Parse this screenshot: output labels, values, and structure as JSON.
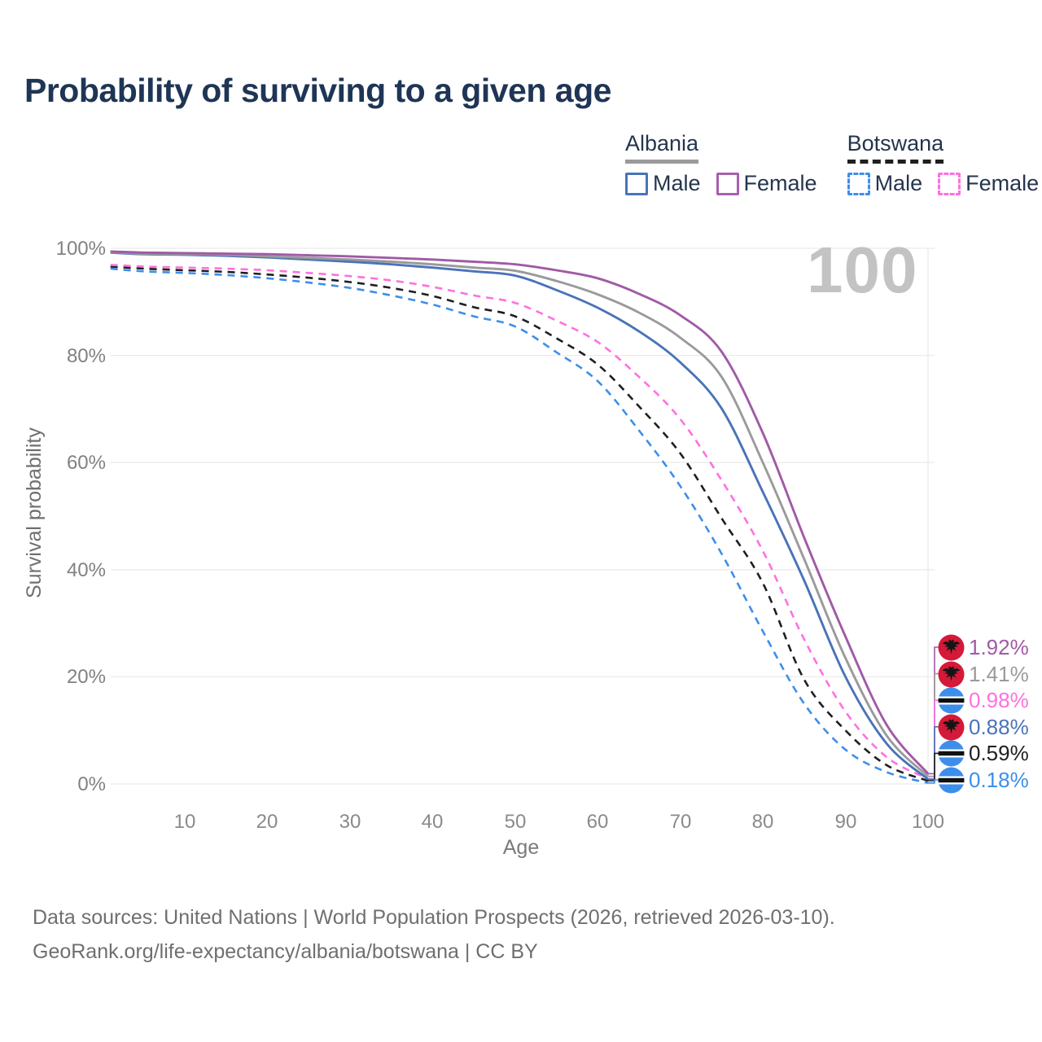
{
  "title": "Probability of surviving to a given age",
  "legend": {
    "groups": [
      {
        "country": "Albania",
        "line_style": "solid",
        "underline_color": "#9a9a9a",
        "items": [
          {
            "label": "Male",
            "color": "#4a73b8"
          },
          {
            "label": "Female",
            "color": "#a860ae"
          }
        ]
      },
      {
        "country": "Botswana",
        "line_style": "dashed",
        "underline_color": "#1f1f1f",
        "items": [
          {
            "label": "Male",
            "color": "#3d8eeb"
          },
          {
            "label": "Female",
            "color": "#ff70df"
          }
        ]
      }
    ]
  },
  "chart_data": {
    "type": "line",
    "title": "Probability of surviving to a given age",
    "xlabel": "Age",
    "ylabel": "Survival probability",
    "xlim": [
      1,
      100
    ],
    "ylim": [
      0,
      100
    ],
    "x_ticks": [
      10,
      20,
      30,
      40,
      50,
      60,
      70,
      80,
      90,
      100
    ],
    "y_ticks": [
      {
        "label": "0%",
        "value": 0
      },
      {
        "label": "20%",
        "value": 20
      },
      {
        "label": "40%",
        "value": 40
      },
      {
        "label": "60%",
        "value": 60
      },
      {
        "label": "80%",
        "value": 80
      },
      {
        "label": "100%",
        "value": 100
      }
    ],
    "grid": "horizontal",
    "legend_position": "top-right",
    "watermark": "100",
    "current_age_marker": 100,
    "ages": [
      1,
      5,
      10,
      15,
      20,
      25,
      30,
      35,
      40,
      45,
      50,
      55,
      60,
      65,
      70,
      75,
      80,
      85,
      90,
      95,
      100
    ],
    "series": [
      {
        "name": "Albania Female",
        "country": "Albania",
        "sex": "Female",
        "flag": "albania",
        "color": "#a05aa6",
        "dash": "solid",
        "end_label": "1.92%",
        "values": [
          99.4,
          99.2,
          99.1,
          99.0,
          98.9,
          98.7,
          98.5,
          98.2,
          97.9,
          97.5,
          97.0,
          95.9,
          94.4,
          91.5,
          87.5,
          80.7,
          65.5,
          46.0,
          27.5,
          11.0,
          1.92
        ]
      },
      {
        "name": "Albania Both sexes",
        "country": "Albania",
        "sex": "Both",
        "flag": "albania",
        "color": "#9a9a9a",
        "dash": "solid",
        "end_label": "1.41%",
        "values": [
          99.3,
          99.0,
          98.9,
          98.8,
          98.5,
          98.2,
          97.9,
          97.5,
          97.0,
          96.4,
          95.8,
          93.9,
          91.4,
          88.0,
          83.3,
          76.0,
          60.0,
          42.0,
          23.5,
          9.0,
          1.41
        ]
      },
      {
        "name": "Albania Male",
        "country": "Albania",
        "sex": "Male",
        "flag": "albania",
        "color": "#4a73b8",
        "dash": "solid",
        "end_label": "0.88%",
        "values": [
          99.2,
          98.9,
          98.8,
          98.6,
          98.3,
          97.9,
          97.5,
          97.0,
          96.4,
          95.7,
          94.9,
          92.2,
          88.9,
          84.5,
          78.7,
          70.1,
          54.5,
          38.0,
          20.0,
          7.5,
          0.88
        ]
      },
      {
        "name": "Botswana Female",
        "country": "Botswana",
        "sex": "Female",
        "flag": "botswana",
        "color": "#ff70df",
        "dash": "dashed",
        "end_label": "0.98%",
        "values": [
          96.9,
          96.6,
          96.4,
          96.2,
          95.9,
          95.4,
          94.8,
          94.0,
          92.8,
          91.2,
          89.8,
          86.5,
          82.5,
          76.0,
          68.1,
          56.7,
          43.5,
          27.0,
          13.5,
          5.0,
          0.98
        ]
      },
      {
        "name": "Botswana Both sexes",
        "country": "Botswana",
        "sex": "Both",
        "flag": "botswana",
        "color": "#1f1f1f",
        "dash": "dashed",
        "end_label": "0.59%",
        "values": [
          96.6,
          96.2,
          95.9,
          95.6,
          95.1,
          94.5,
          93.7,
          92.6,
          91.1,
          89.0,
          87.3,
          83.2,
          78.3,
          70.5,
          61.7,
          49.6,
          37.5,
          19.5,
          10.0,
          3.5,
          0.59
        ]
      },
      {
        "name": "Botswana Male",
        "country": "Botswana",
        "sex": "Male",
        "flag": "botswana",
        "color": "#3d8eeb",
        "dash": "dashed",
        "end_label": "0.18%",
        "values": [
          96.2,
          95.7,
          95.4,
          95.0,
          94.4,
          93.6,
          92.6,
          91.2,
          89.5,
          87.3,
          85.4,
          80.6,
          75.2,
          66.0,
          55.6,
          43.0,
          28.5,
          15.0,
          6.4,
          2.2,
          0.18
        ]
      }
    ]
  },
  "flags": {
    "albania_red": "#d41939",
    "albania_eagle": "#141414",
    "botswana_blue": "#3d8eeb",
    "botswana_black": "#101010",
    "botswana_white": "#ffffff"
  },
  "colors": {
    "title": "#1e3555",
    "grid": "#ebebeb",
    "tick": "#818181",
    "footer": "#6f6f6f",
    "watermark": "#c3c3c3"
  },
  "footer": {
    "line1": "Data sources: United Nations | World Population Prospects (2026, retrieved 2026-03-10).",
    "line2": "GeoRank.org/life-expectancy/albania/botswana | CC BY"
  }
}
